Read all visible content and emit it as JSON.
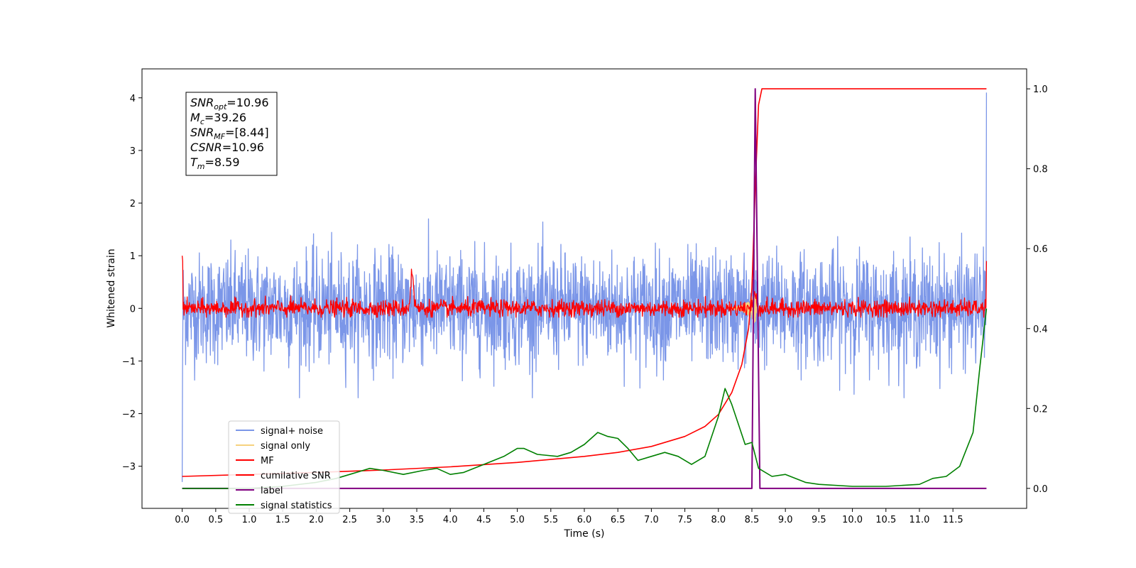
{
  "chart_data": {
    "type": "line",
    "xlabel": "Time (s)",
    "ylabel": "Whitened strain",
    "ylabel_right": "",
    "xlim": [
      -0.6,
      12.6
    ],
    "ylim": [
      -3.8,
      4.55
    ],
    "ylim_right": [
      -0.05,
      1.05
    ],
    "x_ticks": [
      "0.0",
      "0.5",
      "1.0",
      "1.5",
      "2.0",
      "2.5",
      "3.0",
      "3.5",
      "4.0",
      "4.5",
      "5.0",
      "5.5",
      "6.0",
      "6.5",
      "7.0",
      "7.5",
      "8.0",
      "8.5",
      "9.0",
      "9.5",
      "10.0",
      "10.5",
      "11.0",
      "11.5"
    ],
    "y_ticks": [
      "−3",
      "−2",
      "−1",
      "0",
      "1",
      "2",
      "3",
      "4"
    ],
    "y_ticks_right": [
      "0.0",
      "0.2",
      "0.4",
      "0.6",
      "0.8",
      "1.0"
    ],
    "grid": false,
    "legend_position": "lower-left",
    "info_box": {
      "lines": [
        {
          "var": "SNR",
          "sub": "opt",
          "value": "=10.96"
        },
        {
          "var": "M",
          "sub": "c",
          "value": "=39.26"
        },
        {
          "var": "SNR",
          "sub": "MF",
          "value": "=[8.44]"
        },
        {
          "var": "CSNR",
          "sub": "",
          "value": "=10.96"
        },
        {
          "var": "T",
          "sub": "m",
          "value": "=8.59"
        }
      ]
    },
    "series": [
      {
        "name": "signal+ noise",
        "color": "#7b96e8",
        "axis": "left",
        "kind": "noise",
        "amplitude_range": [
          -1.7,
          1.7
        ]
      },
      {
        "name": "signal only",
        "color": "#f6d27e",
        "axis": "left",
        "kind": "chirp",
        "merger_time": 8.55
      },
      {
        "name": "MF",
        "color": "#ff0000",
        "axis": "left",
        "kind": "noise",
        "amplitude_range": [
          -0.2,
          0.25
        ],
        "peaks": [
          {
            "x": 3.43,
            "y": 0.7
          },
          {
            "x": 8.55,
            "y": 0.3
          }
        ]
      },
      {
        "name": "cumilative SNR",
        "color": "#ff0000",
        "axis": "right",
        "x": [
          0.0,
          1.0,
          2.0,
          3.0,
          4.0,
          5.0,
          6.0,
          6.5,
          7.0,
          7.5,
          7.8,
          8.0,
          8.2,
          8.35,
          8.45,
          8.5,
          8.55,
          8.6,
          8.65,
          12.0
        ],
        "y": [
          0.03,
          0.035,
          0.04,
          0.046,
          0.054,
          0.065,
          0.08,
          0.09,
          0.105,
          0.13,
          0.155,
          0.185,
          0.24,
          0.31,
          0.4,
          0.5,
          0.75,
          0.96,
          1.0,
          1.0
        ]
      },
      {
        "name": "label",
        "color": "#800080",
        "axis": "right",
        "x": [
          0.0,
          8.5,
          8.55,
          8.62,
          12.0
        ],
        "y": [
          0.0,
          0.0,
          1.0,
          0.0,
          0.0
        ]
      },
      {
        "name": "signal statistics",
        "color": "#008000",
        "axis": "right",
        "x": [
          0.0,
          0.5,
          1.0,
          1.5,
          2.0,
          2.3,
          2.5,
          2.8,
          3.0,
          3.3,
          3.6,
          3.8,
          4.0,
          4.2,
          4.5,
          4.8,
          5.0,
          5.1,
          5.3,
          5.6,
          5.8,
          6.0,
          6.2,
          6.35,
          6.5,
          6.65,
          6.8,
          7.0,
          7.2,
          7.4,
          7.6,
          7.8,
          8.0,
          8.1,
          8.2,
          8.3,
          8.4,
          8.5,
          8.6,
          8.8,
          9.0,
          9.3,
          9.5,
          10.0,
          10.5,
          11.0,
          11.2,
          11.4,
          11.6,
          11.8,
          11.9,
          12.0
        ],
        "y": [
          0.0,
          0.0,
          0.0,
          0.005,
          0.015,
          0.025,
          0.035,
          0.05,
          0.045,
          0.035,
          0.045,
          0.05,
          0.035,
          0.04,
          0.06,
          0.08,
          0.1,
          0.1,
          0.085,
          0.08,
          0.09,
          0.11,
          0.14,
          0.13,
          0.125,
          0.1,
          0.07,
          0.08,
          0.09,
          0.08,
          0.06,
          0.08,
          0.18,
          0.25,
          0.21,
          0.16,
          0.11,
          0.115,
          0.05,
          0.03,
          0.035,
          0.015,
          0.01,
          0.005,
          0.005,
          0.01,
          0.025,
          0.03,
          0.055,
          0.14,
          0.3,
          0.45
        ]
      }
    ]
  }
}
